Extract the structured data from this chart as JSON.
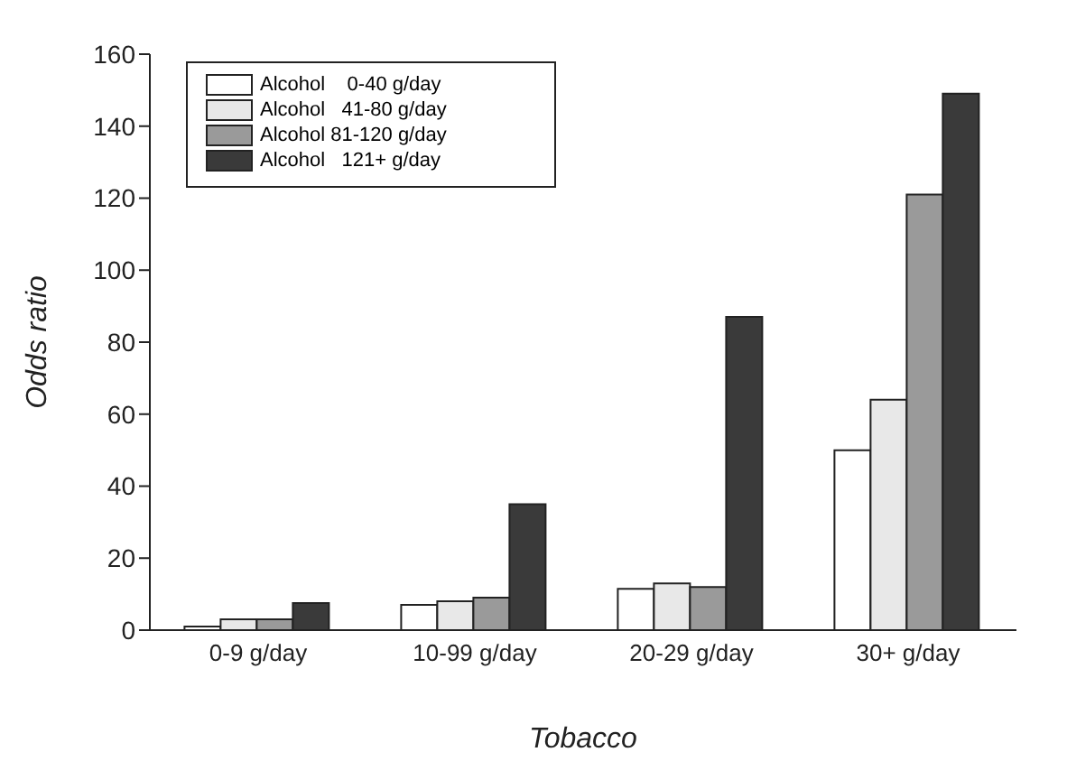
{
  "chart_data": {
    "type": "bar",
    "xlabel": "Tobacco",
    "ylabel": "Odds ratio",
    "categories": [
      "0-9 g/day",
      "10-99 g/day",
      "20-29 g/day",
      "30+ g/day"
    ],
    "series": [
      {
        "name": "Alcohol    0-40 g/day",
        "color": "#ffffff",
        "values": [
          1,
          7,
          11.5,
          50
        ]
      },
      {
        "name": "Alcohol   41-80 g/day",
        "color": "#e8e8e8",
        "values": [
          3,
          8,
          13,
          64
        ]
      },
      {
        "name": "Alcohol 81-120 g/day",
        "color": "#9a9a9a",
        "values": [
          3,
          9,
          12,
          121
        ]
      },
      {
        "name": "Alcohol   121+ g/day",
        "color": "#3a3a3a",
        "values": [
          7.5,
          35,
          87,
          149
        ]
      }
    ],
    "ylim": [
      0,
      160
    ],
    "yticks": [
      0,
      20,
      40,
      60,
      80,
      100,
      120,
      140,
      160
    ],
    "grid": false,
    "legend": "top left"
  }
}
